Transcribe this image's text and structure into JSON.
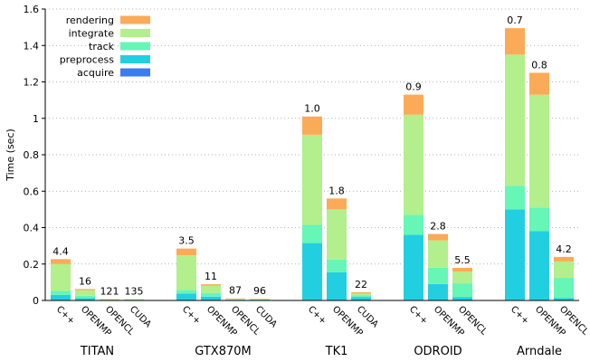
{
  "chart_data": {
    "type": "bar",
    "stacked": true,
    "ylabel": "Time (sec)",
    "ylim": [
      0,
      1.6
    ],
    "yticks": [
      0,
      0.2,
      0.4,
      0.6,
      0.8,
      1,
      1.2,
      1.4,
      1.6
    ],
    "grid": "horizontal-dotted",
    "legend": "top-left",
    "series": [
      {
        "name": "acquire",
        "color": "#3b7cf0"
      },
      {
        "name": "preprocess",
        "color": "#22cfe0"
      },
      {
        "name": "track",
        "color": "#66f6b6"
      },
      {
        "name": "integrate",
        "color": "#b3ef8c"
      },
      {
        "name": "rendering",
        "color": "#fbaa58"
      }
    ],
    "legend_order": [
      "rendering",
      "integrate",
      "track",
      "preprocess",
      "acquire"
    ],
    "groups": [
      {
        "name": "TITAN",
        "bars": [
          {
            "category": "C++",
            "label": "4.4",
            "values": [
              0.002,
              0.028,
              0.022,
              0.148,
              0.027
            ]
          },
          {
            "category": "OPENMP",
            "label": "16",
            "values": [
              0.001,
              0.012,
              0.013,
              0.03,
              0.007
            ]
          },
          {
            "category": "OPENCL",
            "label": "121",
            "values": [
              0.0005,
              0.002,
              0.002,
              0.0025,
              0.001
            ]
          },
          {
            "category": "CUDA",
            "label": "135",
            "values": [
              0.0005,
              0.002,
              0.002,
              0.002,
              0.001
            ]
          }
        ]
      },
      {
        "name": "GTX870M",
        "bars": [
          {
            "category": "C++",
            "label": "3.5",
            "values": [
              0.002,
              0.036,
              0.02,
              0.19,
              0.037
            ]
          },
          {
            "category": "OPENMP",
            "label": "11",
            "values": [
              0.001,
              0.02,
              0.02,
              0.04,
              0.008
            ]
          },
          {
            "category": "OPENCL",
            "label": "87",
            "values": [
              0.0005,
              0.003,
              0.003,
              0.003,
              0.002
            ]
          },
          {
            "category": "CUDA",
            "label": "96",
            "values": [
              0.0005,
              0.003,
              0.003,
              0.002,
              0.002
            ]
          }
        ]
      },
      {
        "name": "TK1",
        "bars": [
          {
            "category": "C++",
            "label": "1.0",
            "values": [
              0.003,
              0.312,
              0.1,
              0.495,
              0.1
            ]
          },
          {
            "category": "OPENMP",
            "label": "1.8",
            "values": [
              0.002,
              0.153,
              0.07,
              0.275,
              0.06
            ]
          },
          {
            "category": "CUDA",
            "label": "22",
            "values": [
              0.001,
              0.018,
              0.01,
              0.009,
              0.007
            ]
          }
        ]
      },
      {
        "name": "ODROID",
        "bars": [
          {
            "category": "C++",
            "label": "0.9",
            "values": [
              0.003,
              0.357,
              0.11,
              0.55,
              0.11
            ]
          },
          {
            "category": "OPENMP",
            "label": "2.8",
            "values": [
              0.002,
              0.088,
              0.09,
              0.15,
              0.035
            ]
          },
          {
            "category": "OPENCL",
            "label": "5.5",
            "values": [
              0.001,
              0.018,
              0.075,
              0.065,
              0.02
            ]
          }
        ]
      },
      {
        "name": "Arndale",
        "bars": [
          {
            "category": "C++",
            "label": "0.7",
            "values": [
              0.003,
              0.497,
              0.13,
              0.72,
              0.145
            ]
          },
          {
            "category": "OPENMP",
            "label": "0.8",
            "values": [
              0.002,
              0.378,
              0.13,
              0.62,
              0.12
            ]
          },
          {
            "category": "OPENCL",
            "label": "4.2",
            "values": [
              0.001,
              0.013,
              0.11,
              0.09,
              0.025
            ]
          }
        ]
      }
    ]
  }
}
